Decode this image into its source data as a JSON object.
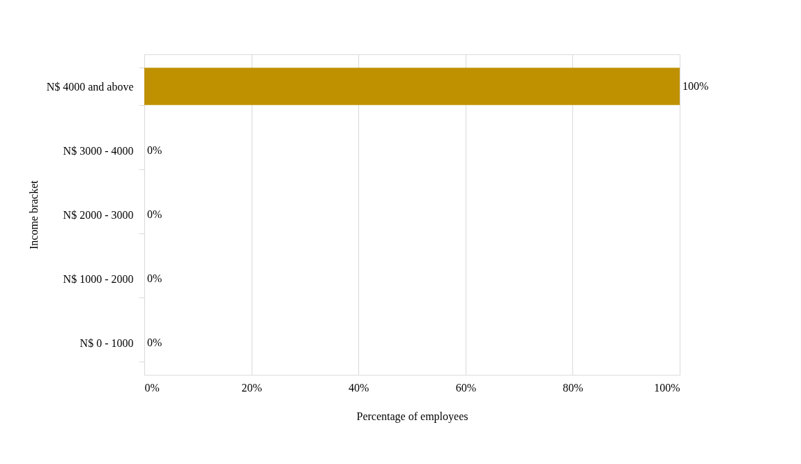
{
  "chart_data": {
    "type": "bar",
    "orientation": "horizontal",
    "xlabel": "Percentage of employees",
    "ylabel": "Income bracket",
    "categories": [
      "N$ 4000 and above",
      "N$ 3000 - 4000",
      "N$ 2000 - 3000",
      "N$ 1000 - 2000",
      "N$ 0 - 1000"
    ],
    "values": [
      100,
      0,
      0,
      0,
      0
    ],
    "value_labels": [
      "100%",
      "0%",
      "0%",
      "0%",
      "0%"
    ],
    "color": "#bf9000",
    "xlim": [
      0,
      100
    ],
    "xticks": [
      {
        "value": 0,
        "label": "0%"
      },
      {
        "value": 20,
        "label": "20%"
      },
      {
        "value": 40,
        "label": "40%"
      },
      {
        "value": 60,
        "label": "60%"
      },
      {
        "value": 80,
        "label": "80%"
      },
      {
        "value": 100,
        "label": "100%"
      }
    ],
    "grid": "x"
  }
}
